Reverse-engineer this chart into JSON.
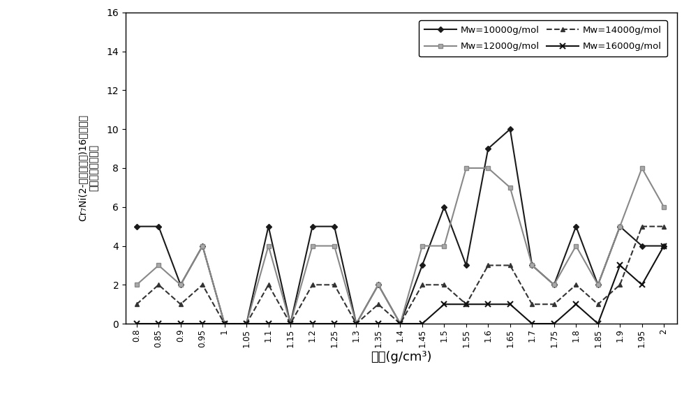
{
  "x": [
    0.8,
    0.85,
    0.9,
    0.95,
    1.0,
    1.05,
    1.1,
    1.15,
    1.2,
    1.25,
    1.3,
    1.35,
    1.4,
    1.45,
    1.5,
    1.55,
    1.6,
    1.65,
    1.7,
    1.75,
    1.8,
    1.85,
    1.9,
    1.95,
    2.0
  ],
  "mw10000": [
    5,
    5,
    2,
    4,
    0,
    0,
    5,
    0,
    5,
    5,
    0,
    2,
    0,
    3,
    6,
    3,
    9,
    10,
    3,
    2,
    5,
    2,
    5,
    4,
    4
  ],
  "mw12000": [
    2,
    3,
    2,
    4,
    0,
    0,
    4,
    0,
    4,
    4,
    0,
    2,
    0,
    4,
    4,
    8,
    8,
    7,
    3,
    2,
    4,
    2,
    5,
    8,
    6
  ],
  "mw14000": [
    1,
    2,
    1,
    2,
    0,
    0,
    2,
    0,
    2,
    2,
    0,
    1,
    0,
    2,
    2,
    1,
    3,
    3,
    1,
    1,
    2,
    1,
    2,
    5,
    5
  ],
  "mw16000": [
    0,
    0,
    0,
    0,
    0,
    0,
    0,
    0,
    0,
    0,
    0,
    0,
    0,
    0,
    1,
    1,
    1,
    1,
    0,
    0,
    1,
    0,
    3,
    2,
    4
  ],
  "xlabel": "密度(g/cm³)",
  "ylabel_lines": [
    "Cr₇Ni(2-乙基己酸根)16络合物中",
    "产生的次级电子数"
  ],
  "legend_labels": [
    "Mw=10000g/mol",
    "Mw=12000g/mol",
    "Mw=14000g/mol",
    "Mw=16000g/mol"
  ],
  "ylim": [
    0,
    16
  ],
  "xlim": [
    0.775,
    2.03
  ],
  "background_color": "#ffffff"
}
